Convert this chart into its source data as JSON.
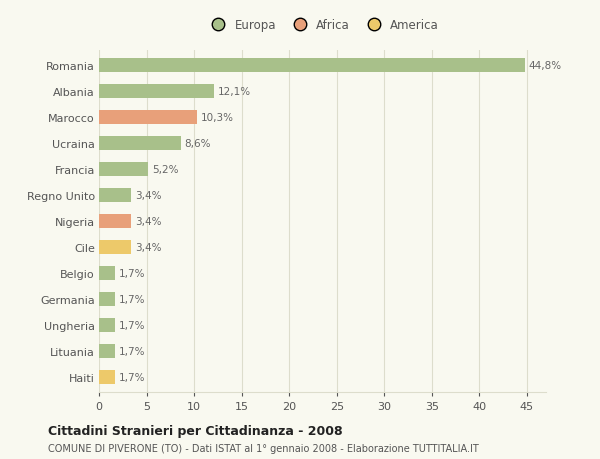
{
  "countries": [
    "Romania",
    "Albania",
    "Marocco",
    "Ucraina",
    "Francia",
    "Regno Unito",
    "Nigeria",
    "Cile",
    "Belgio",
    "Germania",
    "Ungheria",
    "Lituania",
    "Haiti"
  ],
  "values": [
    44.8,
    12.1,
    10.3,
    8.6,
    5.2,
    3.4,
    3.4,
    3.4,
    1.7,
    1.7,
    1.7,
    1.7,
    1.7
  ],
  "labels": [
    "44,8%",
    "12,1%",
    "10,3%",
    "8,6%",
    "5,2%",
    "3,4%",
    "3,4%",
    "3,4%",
    "1,7%",
    "1,7%",
    "1,7%",
    "1,7%",
    "1,7%"
  ],
  "colors": [
    "#a8c08a",
    "#a8c08a",
    "#e8a07a",
    "#a8c08a",
    "#a8c08a",
    "#a8c08a",
    "#e8a07a",
    "#edc96a",
    "#a8c08a",
    "#a8c08a",
    "#a8c08a",
    "#a8c08a",
    "#edc96a"
  ],
  "legend_labels": [
    "Europa",
    "Africa",
    "America"
  ],
  "legend_colors": [
    "#a8c08a",
    "#e8a07a",
    "#edc96a"
  ],
  "xlim": [
    0,
    47
  ],
  "xticks": [
    0,
    5,
    10,
    15,
    20,
    25,
    30,
    35,
    40,
    45
  ],
  "title": "Cittadini Stranieri per Cittadinanza - 2008",
  "subtitle": "COMUNE DI PIVERONE (TO) - Dati ISTAT al 1° gennaio 2008 - Elaborazione TUTTITALIA.IT",
  "background_color": "#f9f9f0",
  "plot_bg_color": "#f4f4e8",
  "grid_color": "#ddddcc",
  "bar_height": 0.55,
  "label_fontsize": 7.5,
  "ytick_fontsize": 8,
  "xtick_fontsize": 8
}
